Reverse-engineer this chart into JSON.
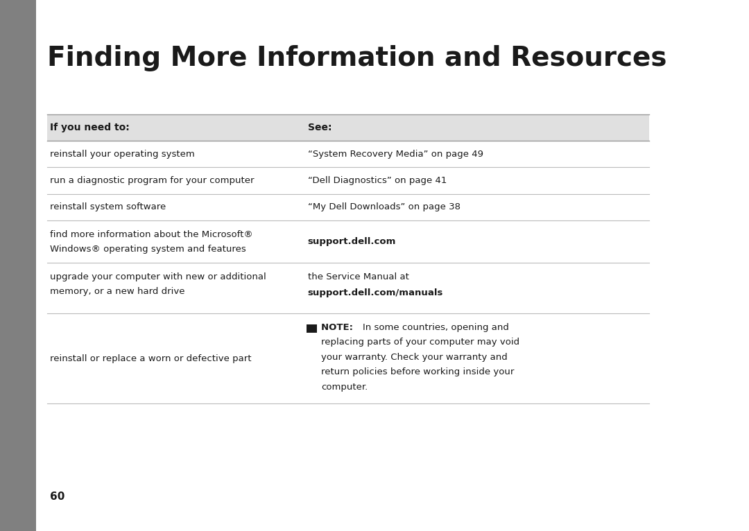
{
  "title": "Finding More Information and Resources",
  "bg_color": "#ffffff",
  "sidebar_color": "#808080",
  "page_number": "60",
  "header_col1": "If you need to:",
  "header_col2": "See:",
  "rows": [
    {
      "col1": "reinstall your operating system",
      "col2": "“System Recovery Media” on page 49",
      "col2_bold": false
    },
    {
      "col1": "run a diagnostic program for your computer",
      "col2": "“Dell Diagnostics” on page 41",
      "col2_bold": false
    },
    {
      "col1": "reinstall system software",
      "col2": "“My Dell Downloads” on page 38",
      "col2_bold": false
    },
    {
      "col1": "find more information about the Microsoft®\nWindows® operating system and features",
      "col2": "support.dell.com",
      "col2_bold": true
    },
    {
      "col1": "upgrade your computer with new or additional\nmemory, or a new hard drive",
      "col2": "the Service Manual at\nsupport.dell.com/manuals",
      "col2_bold_line2": true
    },
    {
      "col1": "reinstall or replace a worn or defective part",
      "col2": "NOTE: In some countries, opening and\nreplacing parts of your computer may void\nyour warranty. Check your warranty and\nreturn policies before working inside your\ncomputer.",
      "col2_bold": false,
      "has_note": true
    }
  ],
  "col_split": 0.44
}
